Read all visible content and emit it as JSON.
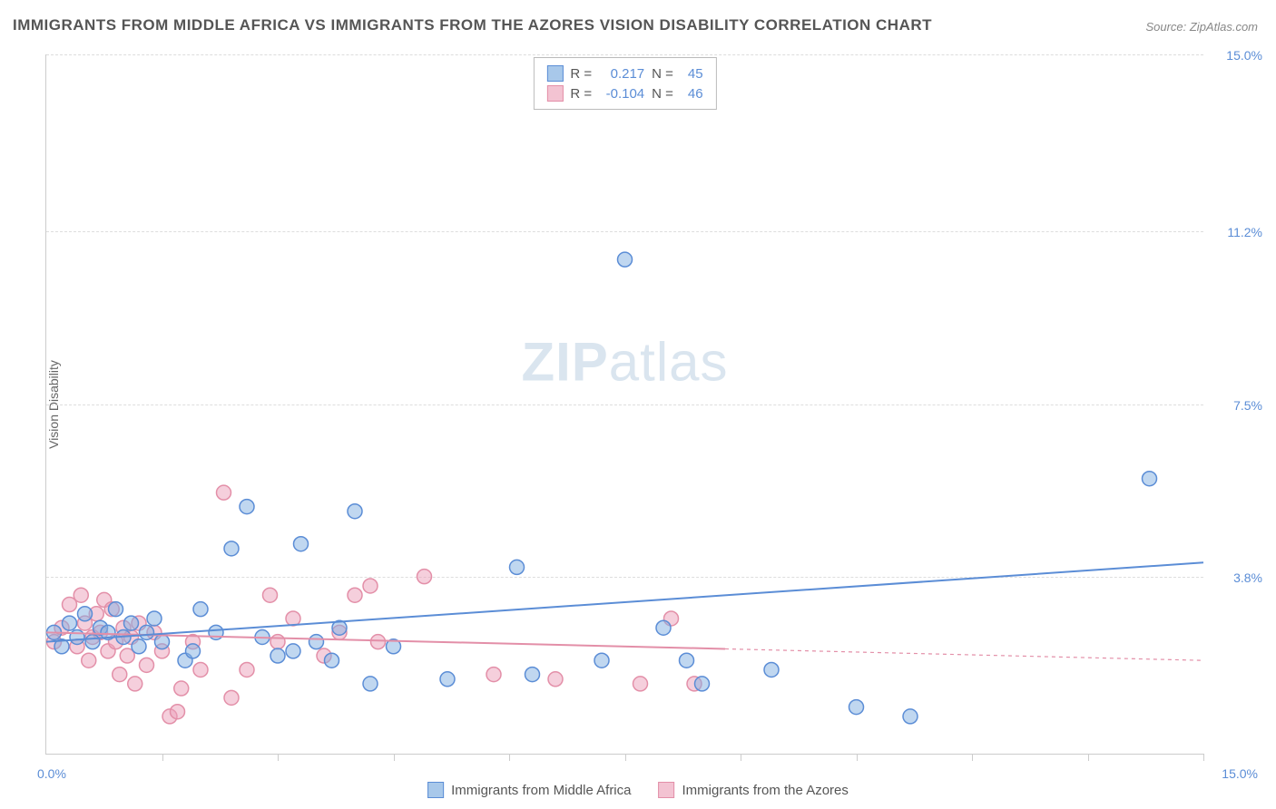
{
  "title": "IMMIGRANTS FROM MIDDLE AFRICA VS IMMIGRANTS FROM THE AZORES VISION DISABILITY CORRELATION CHART",
  "source": "Source: ZipAtlas.com",
  "y_axis_label": "Vision Disability",
  "watermark_zip": "ZIP",
  "watermark_atlas": "atlas",
  "chart": {
    "type": "scatter",
    "background_color": "#ffffff",
    "grid_color": "#dddddd",
    "axis_color": "#cccccc",
    "tick_label_color": "#5b8dd6",
    "xlim": [
      0,
      15.0
    ],
    "ylim": [
      0,
      15.0
    ],
    "y_ticks": [
      3.8,
      7.5,
      11.2,
      15.0
    ],
    "y_tick_labels": [
      "3.8%",
      "7.5%",
      "11.2%",
      "15.0%"
    ],
    "x_origin_label": "0.0%",
    "x_max_label": "15.0%",
    "x_ticks": [
      1.5,
      3.0,
      4.5,
      6.0,
      7.5,
      9.0,
      10.5,
      12.0,
      13.5,
      15.0
    ],
    "marker_radius": 8,
    "marker_stroke_width": 1.5,
    "trendline_width": 2
  },
  "series": {
    "blue": {
      "label": "Immigrants from Middle Africa",
      "fill": "rgba(130, 175, 225, 0.5)",
      "stroke": "#5b8dd6",
      "swatch_fill": "#a8c8ea",
      "swatch_border": "#5b8dd6",
      "R": "0.217",
      "N": "45",
      "trend": {
        "x1": 0,
        "y1": 2.4,
        "x2": 15.0,
        "y2": 4.1,
        "solid_until": 15.0
      },
      "points": [
        [
          0.1,
          2.6
        ],
        [
          0.2,
          2.3
        ],
        [
          0.3,
          2.8
        ],
        [
          0.4,
          2.5
        ],
        [
          0.5,
          3.0
        ],
        [
          0.6,
          2.4
        ],
        [
          0.7,
          2.7
        ],
        [
          0.8,
          2.6
        ],
        [
          0.9,
          3.1
        ],
        [
          1.0,
          2.5
        ],
        [
          1.1,
          2.8
        ],
        [
          1.2,
          2.3
        ],
        [
          1.3,
          2.6
        ],
        [
          1.4,
          2.9
        ],
        [
          1.5,
          2.4
        ],
        [
          1.8,
          2.0
        ],
        [
          1.9,
          2.2
        ],
        [
          2.0,
          3.1
        ],
        [
          2.2,
          2.6
        ],
        [
          2.4,
          4.4
        ],
        [
          2.6,
          5.3
        ],
        [
          2.8,
          2.5
        ],
        [
          3.0,
          2.1
        ],
        [
          3.2,
          2.2
        ],
        [
          3.3,
          4.5
        ],
        [
          3.5,
          2.4
        ],
        [
          3.7,
          2.0
        ],
        [
          3.8,
          2.7
        ],
        [
          4.0,
          5.2
        ],
        [
          4.2,
          1.5
        ],
        [
          4.5,
          2.3
        ],
        [
          5.2,
          1.6
        ],
        [
          6.1,
          4.0
        ],
        [
          6.3,
          1.7
        ],
        [
          7.2,
          2.0
        ],
        [
          7.5,
          10.6
        ],
        [
          8.0,
          2.7
        ],
        [
          8.3,
          2.0
        ],
        [
          8.5,
          1.5
        ],
        [
          9.4,
          1.8
        ],
        [
          10.5,
          1.0
        ],
        [
          11.2,
          0.8
        ],
        [
          14.3,
          5.9
        ]
      ]
    },
    "pink": {
      "label": "Immigrants from the Azores",
      "fill": "rgba(235, 160, 185, 0.5)",
      "stroke": "#e38fa8",
      "swatch_fill": "#f3c3d2",
      "swatch_border": "#e38fa8",
      "R": "-0.104",
      "N": "46",
      "trend": {
        "x1": 0,
        "y1": 2.6,
        "x2": 15.0,
        "y2": 2.0,
        "solid_until": 8.8
      },
      "points": [
        [
          0.1,
          2.4
        ],
        [
          0.2,
          2.7
        ],
        [
          0.3,
          3.2
        ],
        [
          0.4,
          2.3
        ],
        [
          0.45,
          3.4
        ],
        [
          0.5,
          2.8
        ],
        [
          0.55,
          2.0
        ],
        [
          0.6,
          2.5
        ],
        [
          0.65,
          3.0
        ],
        [
          0.7,
          2.6
        ],
        [
          0.75,
          3.3
        ],
        [
          0.8,
          2.2
        ],
        [
          0.85,
          3.1
        ],
        [
          0.9,
          2.4
        ],
        [
          0.95,
          1.7
        ],
        [
          1.0,
          2.7
        ],
        [
          1.05,
          2.1
        ],
        [
          1.1,
          2.5
        ],
        [
          1.15,
          1.5
        ],
        [
          1.2,
          2.8
        ],
        [
          1.3,
          1.9
        ],
        [
          1.4,
          2.6
        ],
        [
          1.5,
          2.2
        ],
        [
          1.6,
          0.8
        ],
        [
          1.7,
          0.9
        ],
        [
          1.75,
          1.4
        ],
        [
          1.9,
          2.4
        ],
        [
          2.0,
          1.8
        ],
        [
          2.3,
          5.6
        ],
        [
          2.4,
          1.2
        ],
        [
          2.6,
          1.8
        ],
        [
          2.9,
          3.4
        ],
        [
          3.0,
          2.4
        ],
        [
          3.2,
          2.9
        ],
        [
          3.6,
          2.1
        ],
        [
          3.8,
          2.6
        ],
        [
          4.0,
          3.4
        ],
        [
          4.2,
          3.6
        ],
        [
          4.3,
          2.4
        ],
        [
          4.9,
          3.8
        ],
        [
          5.8,
          1.7
        ],
        [
          6.6,
          1.6
        ],
        [
          7.7,
          1.5
        ],
        [
          8.1,
          2.9
        ],
        [
          8.4,
          1.5
        ]
      ]
    }
  },
  "stats_box": {
    "R_label": "R =",
    "N_label": "N ="
  }
}
